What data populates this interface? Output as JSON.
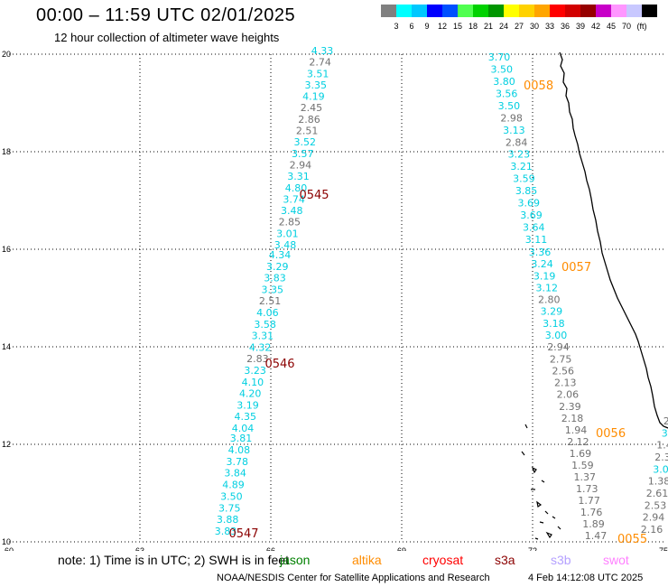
{
  "header": {
    "title": "00:00 – 11:59 UTC 02/01/2025",
    "subtitle": "12 hour collection of altimeter wave heights"
  },
  "colorbar": {
    "colors": [
      "#808080",
      "#00ffff",
      "#00c8ff",
      "#0000ff",
      "#0050ff",
      "#50ff50",
      "#00d200",
      "#009600",
      "#ffff00",
      "#ffd200",
      "#ffa500",
      "#ff0000",
      "#d20000",
      "#960000",
      "#c800c8",
      "#ff96ff",
      "#c8c8ff",
      "#000000"
    ],
    "labels": [
      "3",
      "6",
      "9",
      "12",
      "15",
      "18",
      "21",
      "24",
      "27",
      "30",
      "33",
      "36",
      "39",
      "42",
      "45",
      "70",
      "(ft)"
    ]
  },
  "axes": {
    "x_ticks": [
      "60",
      "63",
      "66",
      "69",
      "72",
      "75"
    ],
    "y_ticks": [
      "10",
      "12",
      "14",
      "16",
      "18",
      "20"
    ]
  },
  "tracks": [
    {
      "time": "0545",
      "color": "#8b0000",
      "time_lat": 17.0,
      "values": [
        "4.33",
        "2.74",
        "3.51",
        "3.35",
        "4.19",
        "2.45",
        "2.86",
        "2.51",
        "3.52",
        "3.57",
        "2.94",
        "3.31",
        "4.80",
        "3.74",
        "3.48",
        "2.85",
        "3.01",
        "3.48"
      ]
    },
    {
      "time": "0546",
      "color": "#8b0000",
      "time_lat": 13.7,
      "values": [
        "4.34",
        "3.29",
        "3.83",
        "3.35",
        "2.51",
        "4.06",
        "3.58",
        "3.31",
        "4.32",
        "2.83",
        "3.23",
        "4.10",
        "4.20",
        "3.19",
        "4.35",
        "4.04"
      ]
    },
    {
      "time": "0547",
      "color": "#8b0000",
      "time_lat": 10.2,
      "values": [
        "3.81",
        "4.08",
        "3.78",
        "3.84",
        "4.89",
        "3.50",
        "3.75",
        "3.88",
        "3.83"
      ]
    },
    {
      "time": "0058",
      "color": "#ff8c00",
      "time_lat": 19.3,
      "values": [
        "3.70",
        "3.50",
        "3.80",
        "3.56",
        "3.50",
        "2.98",
        "3.13",
        "2.84",
        "3.23",
        "3.21",
        "3.59",
        "3.85",
        "3.69",
        "3.69",
        "3.64",
        "3.11"
      ]
    },
    {
      "time": "0057",
      "color": "#ff8c00",
      "time_lat": 15.9,
      "values": [
        "3.36",
        "3.24",
        "3.19",
        "3.12",
        "2.80",
        "3.29",
        "3.18",
        "3.00",
        "2.94",
        "2.75",
        "2.56",
        "2.13",
        "2.06",
        "2.39",
        "2.18"
      ]
    },
    {
      "time": "0056",
      "color": "#ff8c00",
      "time_lat": 12.25,
      "values": [
        "1.94",
        "2.12",
        "1.69",
        "1.59",
        "1.37",
        "1.73",
        "1.77",
        "1.76",
        "1.89",
        "1.47"
      ]
    },
    {
      "time": "0055",
      "color": "#ff8c00",
      "time_lat": 10.1,
      "values": [
        "2.",
        "3.",
        "1.4",
        "2.3",
        "3.0",
        "1.38",
        "2.61",
        "2.53",
        "2.94",
        "2.16"
      ]
    }
  ],
  "footer": {
    "note": "note: 1) Time is in UTC; 2) SWH is in feet",
    "satellites": [
      {
        "name": "jason",
        "color": "#008000"
      },
      {
        "name": "altika",
        "color": "#ff8c00"
      },
      {
        "name": "cryosat",
        "color": "#ff0000"
      },
      {
        "name": "s3a",
        "color": "#8b0000"
      },
      {
        "name": "s3b",
        "color": "#b4a0ff"
      },
      {
        "name": "swot",
        "color": "#ff80ff"
      }
    ],
    "credit": "NOAA/NESDIS Center for Satellite Applications and Research",
    "timestamp": "4 Feb 14:12:08 UTC 2025"
  }
}
